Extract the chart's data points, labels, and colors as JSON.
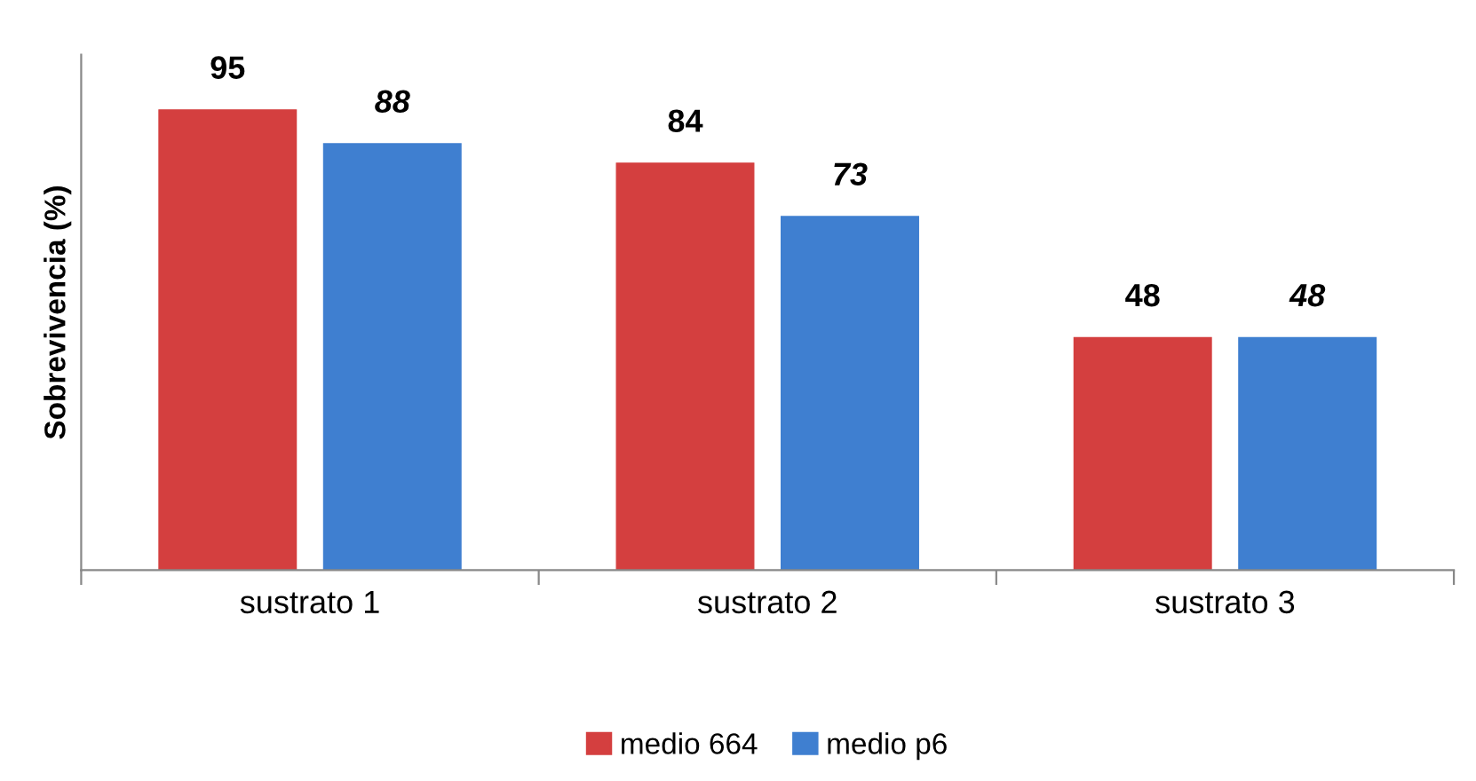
{
  "chart_data": {
    "type": "bar",
    "ylabel": "Sobrevivencia (%)",
    "categories": [
      "sustrato 1",
      "sustrato 2",
      "sustrato 3"
    ],
    "series": [
      {
        "name": "medio 664",
        "color": "#d43f3f",
        "values": [
          95,
          84,
          48
        ]
      },
      {
        "name": "medio p6",
        "color": "#3f7fd0",
        "values": [
          88,
          73,
          48
        ]
      }
    ],
    "data_labels": true,
    "legend": "bottom",
    "grid": false
  }
}
